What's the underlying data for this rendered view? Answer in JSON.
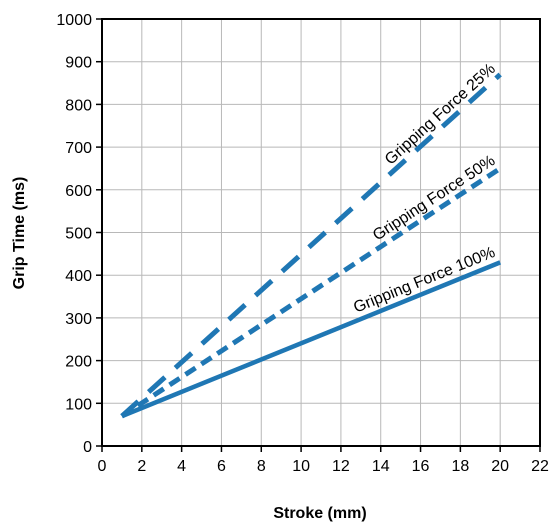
{
  "chart_data": {
    "type": "line",
    "xlabel": "Stroke (mm)",
    "ylabel": "Grip Time (ms)",
    "xlim": [
      0,
      22
    ],
    "ylim": [
      0,
      1000
    ],
    "x_ticks": [
      0,
      2,
      4,
      6,
      8,
      10,
      12,
      14,
      16,
      18,
      20,
      22
    ],
    "y_ticks": [
      0,
      100,
      200,
      300,
      400,
      500,
      600,
      700,
      800,
      900,
      1000
    ],
    "grid": true,
    "legend": "none",
    "color": "#1f77b4",
    "series": [
      {
        "name": "Gripping Force 25%",
        "x": [
          1,
          20
        ],
        "y": [
          70,
          870
        ],
        "dash": "long-dash"
      },
      {
        "name": "Gripping Force 50%",
        "x": [
          1,
          20
        ],
        "y": [
          70,
          650
        ],
        "dash": "dash"
      },
      {
        "name": "Gripping Force 100%",
        "x": [
          1,
          20
        ],
        "y": [
          70,
          430
        ],
        "dash": "solid"
      }
    ]
  }
}
